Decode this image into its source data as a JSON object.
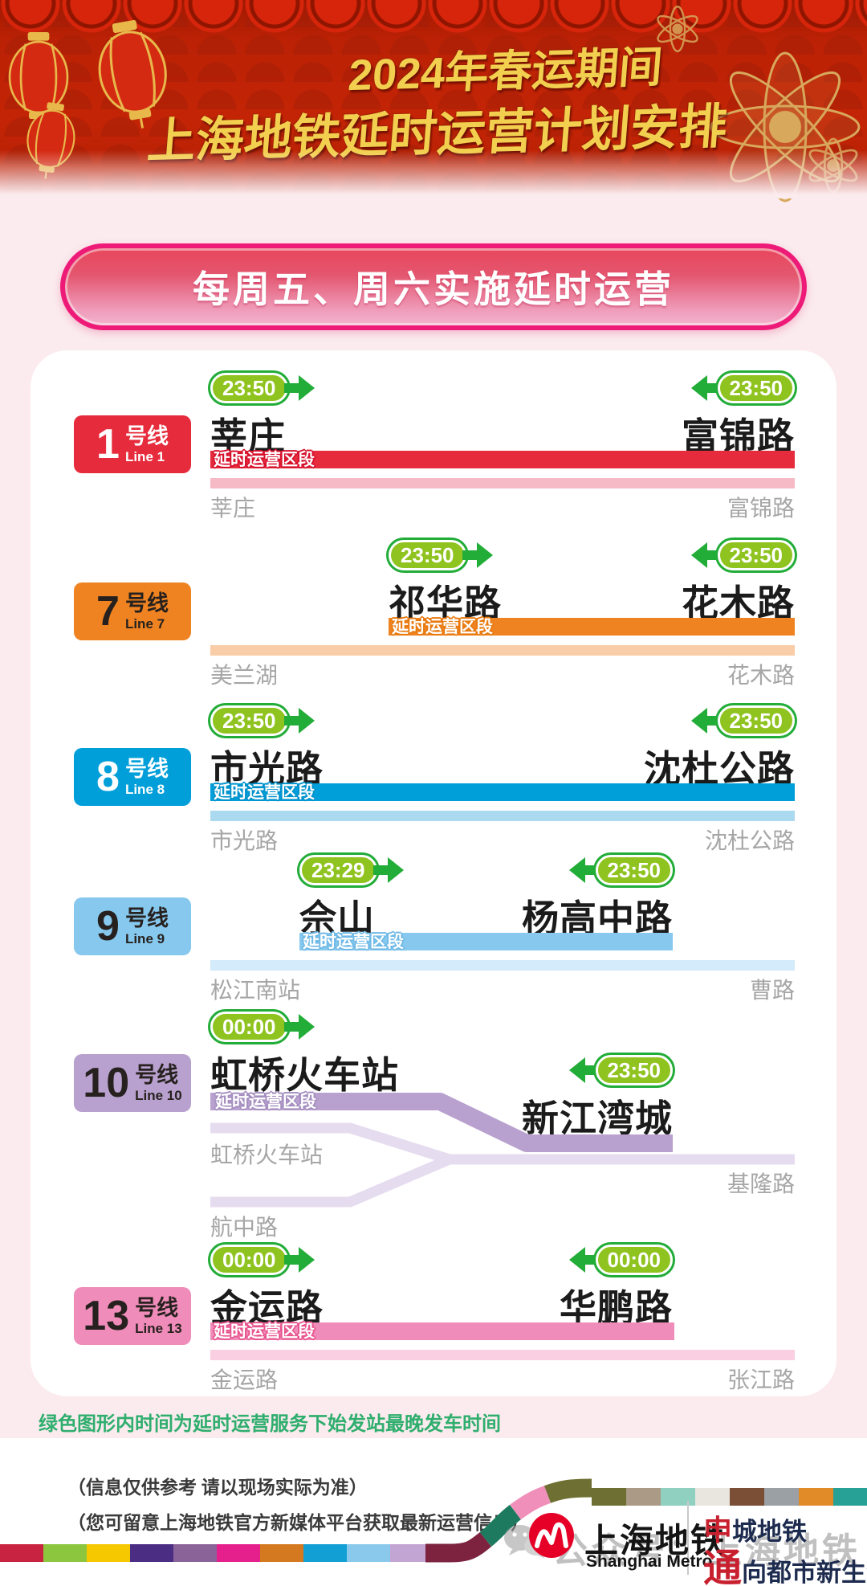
{
  "header": {
    "title_line1": "2024年春运期间",
    "title_line2": "上海地铁延时运营计划安排"
  },
  "banner": {
    "text": "每周五、周六实施延时运营"
  },
  "segment_label": "延时运营区段",
  "legend_note": "绿色图形内时间为延时运营服务下始发站最晚发车时间",
  "badge_colors": {
    "pill_fill": "#8fc31f",
    "pill_ring": "#22ac38"
  },
  "lines": [
    {
      "number": "1",
      "suffix": "号线",
      "name_en": "Line 1",
      "color": "#e62c3c",
      "color_light": "#f6bac6",
      "badge_text": "#ffffff",
      "label_outline": "#d7102c",
      "departure": {
        "time": "23:50",
        "station": "莘庄"
      },
      "arrival": {
        "time": "23:50",
        "station": "富锦路"
      },
      "terminus_left": "莘庄",
      "terminus_right": "富锦路"
    },
    {
      "number": "7",
      "suffix": "号线",
      "name_en": "Line 7",
      "color": "#f08321",
      "color_light": "#f9cda7",
      "badge_text": "#26211e",
      "label_outline": "#e87a10",
      "departure": {
        "time": "23:50",
        "station": "祁华路"
      },
      "arrival": {
        "time": "23:50",
        "station": "花木路"
      },
      "terminus_left": "美兰湖",
      "terminus_right": "花木路"
    },
    {
      "number": "8",
      "suffix": "号线",
      "name_en": "Line 8",
      "color": "#009fd9",
      "color_light": "#abdaf0",
      "badge_text": "#ffffff",
      "label_outline": "#0092cc",
      "departure": {
        "time": "23:50",
        "station": "市光路"
      },
      "arrival": {
        "time": "23:50",
        "station": "沈杜公路"
      },
      "terminus_left": "市光路",
      "terminus_right": "沈杜公路"
    },
    {
      "number": "9",
      "suffix": "号线",
      "name_en": "Line 9",
      "color": "#87c8ee",
      "color_light": "#d3ebfa",
      "badge_text": "#26211e",
      "label_outline": "#6fb9e6",
      "departure": {
        "time": "23:29",
        "station": "佘山"
      },
      "arrival": {
        "time": "23:50",
        "station": "杨高中路"
      },
      "terminus_left": "松江南站",
      "terminus_right": "曹路"
    },
    {
      "number": "10",
      "suffix": "号线",
      "name_en": "Line 10",
      "color": "#b9a1cf",
      "color_light": "#e6dcef",
      "badge_text": "#26211e",
      "label_outline": "#a58fc0",
      "departure": {
        "time": "00:00",
        "station": "虹桥火车站"
      },
      "arrival": {
        "time": "23:50",
        "station": "新江湾城"
      },
      "terminus_left": "虹桥火车站",
      "terminus_right": "基隆路",
      "terminus_branch": "航中路"
    },
    {
      "number": "13",
      "suffix": "号线",
      "name_en": "Line 13",
      "color": "#ef8cb9",
      "color_light": "#f9cfe1",
      "badge_text": "#26211e",
      "label_outline": "#e8558e",
      "departure": {
        "time": "00:00",
        "station": "金运路"
      },
      "arrival": {
        "time": "00:00",
        "station": "华鹏路"
      },
      "terminus_left": "金运路",
      "terminus_right": "张江路"
    }
  ],
  "footer": {
    "note1": "（信息仅供参考 请以现场实际为准）",
    "note2": "（您可留意上海地铁官方新媒体平台获取最新运营信息）",
    "logo_cn": "上海地铁",
    "logo_en": "Shanghai Metro",
    "slogan1_accent": "申",
    "slogan1_rest": "城地铁",
    "slogan2_accent": "通",
    "slogan2_rest": "向都市新生活",
    "watermark": "公众号：上海地铁",
    "ribbon_bottom_colors": [
      "#c82340",
      "#8cc63e",
      "#f5c800",
      "#4b2d84",
      "#8a6399",
      "#e5208c",
      "#d4791f",
      "#12a0d4",
      "#8ac9ec",
      "#c2a5d3"
    ],
    "ribbon_top_colors": [
      "#6e7033",
      "#ab9a85",
      "#8fd0c0",
      "#e9e6df",
      "#7a4f36",
      "#9aa0a4",
      "#e08a28",
      "#27a096"
    ],
    "ribbon_curve_colors": [
      "#7d2340",
      "#1d7a5f",
      "#f090ba",
      "#6e7033"
    ]
  }
}
